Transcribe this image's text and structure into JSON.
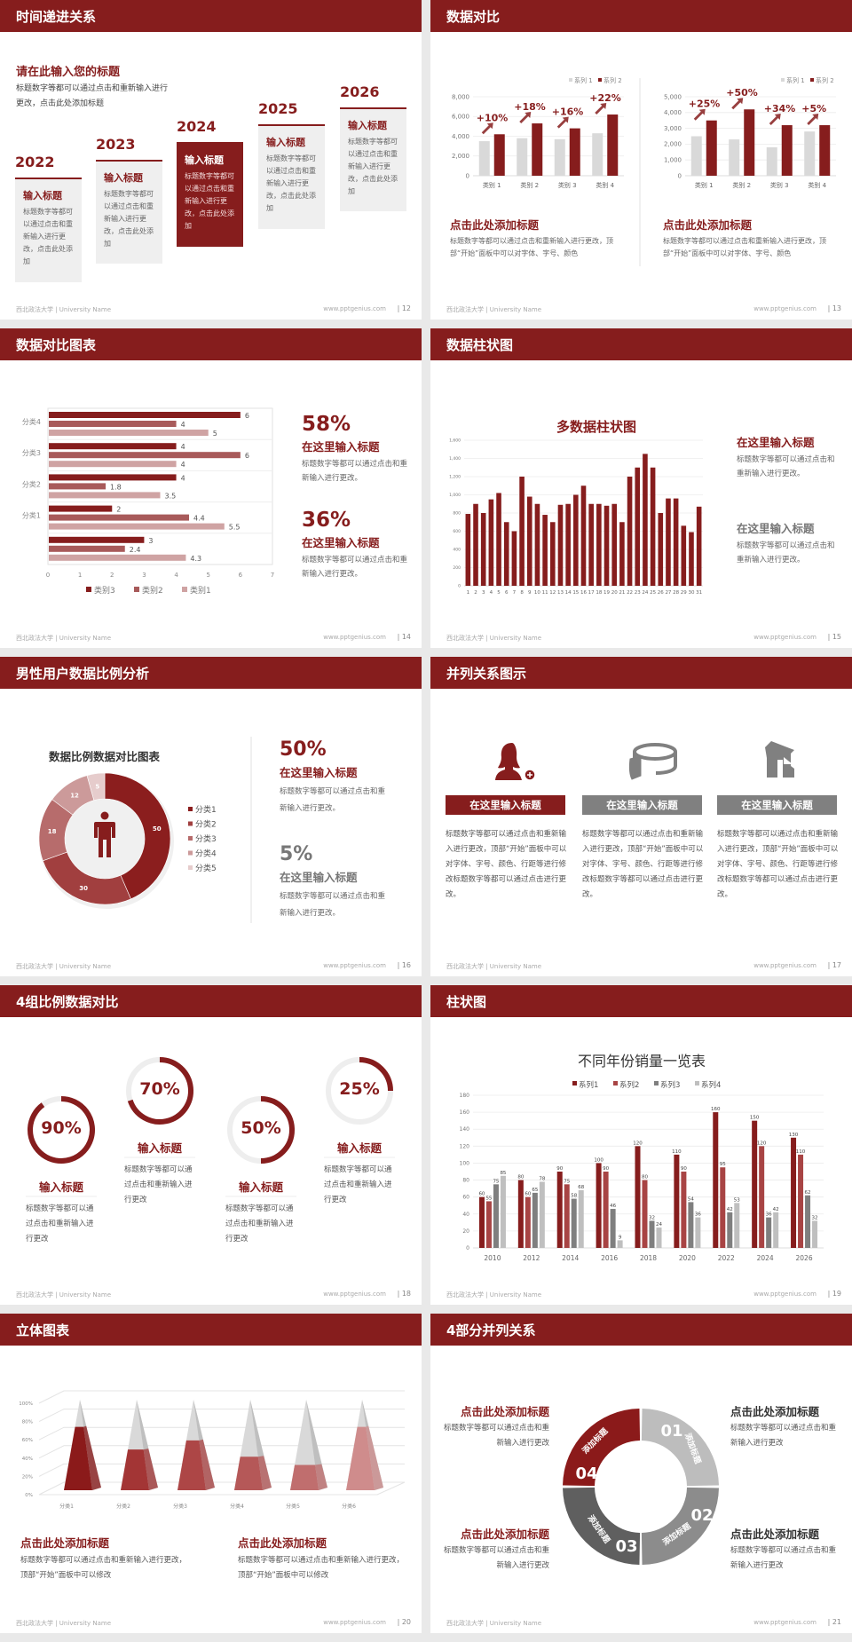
{
  "footer": {
    "left": "西北政法大学 | University Name",
    "url": "www.pptgenius.com"
  },
  "colors": {
    "primary": "#861d1d",
    "secondary": "#a84444",
    "gray": "#7f7f7f",
    "light_gray": "#bfbfbf",
    "background": "#e9e9e9"
  },
  "slides": [
    {
      "title": "时间递进关系",
      "page": "| 12",
      "heading": "请在此输入您的标题",
      "desc": "标题数字等都可以通过点击和重新输入进行更改，点击此处添加标题",
      "steps": [
        {
          "year": "2022",
          "title": "输入标题",
          "body": "标题数字等都可以通过点击和重新输入进行更改，点击此处添加"
        },
        {
          "year": "2023",
          "title": "输入标题",
          "body": "标题数字等都可以通过点击和重新输入进行更改，点击此处添加"
        },
        {
          "year": "2024",
          "title": "输入标题",
          "body": "标题数字等都可以通过点击和重新输入进行更改，点击此处添加"
        },
        {
          "year": "2025",
          "title": "输入标题",
          "body": "标题数字等都可以通过点击和重新输入进行更改，点击此处添加"
        },
        {
          "year": "2026",
          "title": "输入标题",
          "body": "标题数字等都可以通过点击和重新输入进行更改，点击此处添加"
        }
      ]
    },
    {
      "title": "数据对比",
      "page": "| 13",
      "texts": [
        {
          "title": "点击此处添加标题",
          "body": "标题数字等都可以通过点击和重新输入进行更改，顶部“开始”面板中可以对字体、字号、颜色"
        },
        {
          "title": "点击此处添加标题",
          "body": "标题数字等都可以通过点击和重新输入进行更改，顶部“开始”面板中可以对字体、字号、颜色"
        }
      ]
    },
    {
      "title": "数据对比图表",
      "page": "| 14",
      "stats": [
        {
          "value": "58%",
          "title": "在这里输入标题",
          "body": "标题数字等都可以通过点击和重新输入进行更改。"
        },
        {
          "value": "36%",
          "title": "在这里输入标题",
          "body": "标题数字等都可以通过点击和重新输入进行更改。"
        }
      ]
    },
    {
      "title": "数据柱状图",
      "page": "| 15",
      "texts": [
        {
          "title": "在这里输入标题",
          "body": "标题数字等都可以通过点击和重新输入进行更改。"
        },
        {
          "title": "在这里输入标题",
          "body": "标题数字等都可以通过点击和重新输入进行更改。"
        }
      ]
    },
    {
      "title": "男性用户数据比例分析",
      "page": "| 16",
      "center_icon": "male-person-icon",
      "stats": [
        {
          "value": "50%",
          "title": "在这里输入标题",
          "body": "标题数字等都可以通过点击和重新输入进行更改。"
        },
        {
          "value": "5%",
          "title": "在这里输入标题",
          "body": "标题数字等都可以通过点击和重新输入进行更改。"
        }
      ]
    },
    {
      "title": "并列关系图示",
      "page": "| 17",
      "items": [
        {
          "icon": "female-user-add-icon",
          "label": "在这里输入标题",
          "body": "标题数字等都可以通过点击和重新输入进行更改，顶部“开始”面板中可以对字体、字号、颜色、行距等进行修改标题数字等都可以通过点击进行更改。"
        },
        {
          "icon": "pie-chart-3d-icon",
          "label": "在这里输入标题",
          "body": "标题数字等都可以通过点击和重新输入进行更改，顶部“开始”面板中可以对字体、字号、颜色、行距等进行修改标题数字等都可以通过点击进行更改。"
        },
        {
          "icon": "store-building-icon",
          "label": "在这里输入标题",
          "body": "标题数字等都可以通过点击和重新输入进行更改，顶部“开始”面板中可以对字体、字号、颜色、行距等进行修改标题数字等都可以通过点击进行更改。"
        }
      ]
    },
    {
      "title": "4组比例数据对比",
      "page": "| 18",
      "items": [
        {
          "percent": 90,
          "label": "90%",
          "title": "输入标题",
          "body": "标题数字等都可以通过点击和重新输入进行更改"
        },
        {
          "percent": 70,
          "label": "70%",
          "title": "输入标题",
          "body": "标题数字等都可以通过点击和重新输入进行更改"
        },
        {
          "percent": 50,
          "label": "50%",
          "title": "输入标题",
          "body": "标题数字等都可以通过点击和重新输入进行更改"
        },
        {
          "percent": 25,
          "label": "25%",
          "title": "输入标题",
          "body": "标题数字等都可以通过点击和重新输入进行更改"
        }
      ]
    },
    {
      "title": "柱状图",
      "page": "| 19"
    },
    {
      "title": "立体图表",
      "page": "| 20",
      "texts": [
        {
          "title": "点击此处添加标题",
          "body": "标题数字等都可以通过点击和重新输入进行更改，顶部“开始”面板中可以修改"
        },
        {
          "title": "点击此处添加标题",
          "body": "标题数字等都可以通过点击和重新输入进行更改，顶部“开始”面板中可以修改"
        }
      ]
    },
    {
      "title": "4部分并列关系",
      "page": "| 21",
      "segments": [
        {
          "num": "01",
          "label": "添加标题",
          "color": "#bdbdbd"
        },
        {
          "num": "02",
          "label": "添加标题",
          "color": "#8c8c8c"
        },
        {
          "num": "03",
          "label": "添加标题",
          "color": "#5f5f5f"
        },
        {
          "num": "04",
          "label": "添加标题",
          "color": "#8b1a1a"
        }
      ],
      "texts": [
        {
          "title": "点击此处添加标题",
          "body": "标题数字等都可以通过点击和重新输入进行更改"
        },
        {
          "title": "点击此处添加标题",
          "body": "标题数字等都可以通过点击和重新输入进行更改"
        },
        {
          "title": "点击此处添加标题",
          "body": "标题数字等都可以通过点击和重新输入进行更改"
        },
        {
          "title": "点击此处添加标题",
          "body": "标题数字等都可以通过点击和重新输入进行更改"
        }
      ]
    }
  ],
  "chart_data": [
    {
      "type": "bar",
      "categories": [
        "类别 1",
        "类别 2",
        "类别 3",
        "类别 4"
      ],
      "series": [
        {
          "name": "系列 1",
          "values": [
            3500,
            3800,
            3700,
            4300
          ],
          "color": "#d9d9d9"
        },
        {
          "name": "系列 2",
          "values": [
            4200,
            5300,
            4800,
            6200
          ],
          "color": "#861d1d"
        }
      ],
      "annotations": [
        "+10%",
        "+18%",
        "+16%",
        "+22%"
      ],
      "ylim": [
        0,
        8000
      ],
      "ytick_labels": [
        "0",
        "2,000",
        "4,000",
        "6,000",
        "8,000"
      ],
      "grid": true,
      "legend": "top-right"
    },
    {
      "type": "bar",
      "categories": [
        "类别 1",
        "类别 2",
        "类别 3",
        "类别 4"
      ],
      "series": [
        {
          "name": "系列 1",
          "values": [
            2500,
            2300,
            1800,
            2800
          ],
          "color": "#d9d9d9"
        },
        {
          "name": "系列 2",
          "values": [
            3500,
            4200,
            3200,
            3200
          ],
          "color": "#861d1d"
        }
      ],
      "annotations": [
        "+25%",
        "+50%",
        "+34%",
        "+5%"
      ],
      "ylim": [
        0,
        5000
      ],
      "ytick_labels": [
        "0",
        "1,000",
        "2,000",
        "3,000",
        "4,000",
        "5,000"
      ],
      "grid": true,
      "legend": "top-right"
    },
    {
      "type": "bar",
      "orientation": "horizontal",
      "categories": [
        "分类4",
        "分类3",
        "分类2",
        "分类1",
        ""
      ],
      "series": [
        {
          "name": "类别3",
          "values": [
            6,
            4,
            4,
            2,
            3
          ],
          "color": "#861d1d"
        },
        {
          "name": "类别2",
          "values": [
            4,
            6,
            1.8,
            4.4,
            2.4
          ],
          "color": "#a85a5a"
        },
        {
          "name": "类别1",
          "values": [
            5,
            4,
            3.5,
            5.5,
            4.3
          ],
          "color": "#cfa3a3"
        }
      ],
      "xlim": [
        0,
        7
      ],
      "xtick_labels": [
        "0",
        "1",
        "2",
        "3",
        "4",
        "5",
        "6",
        "7"
      ],
      "grid": true,
      "legend": "bottom"
    },
    {
      "type": "bar",
      "title": "多数据柱状图",
      "categories": [
        "1",
        "2",
        "3",
        "4",
        "5",
        "6",
        "7",
        "8",
        "9",
        "10",
        "11",
        "12",
        "13",
        "14",
        "15",
        "16",
        "17",
        "18",
        "19",
        "20",
        "21",
        "22",
        "23",
        "24",
        "25",
        "26",
        "27",
        "28",
        "29",
        "30",
        "31"
      ],
      "values": [
        790,
        900,
        800,
        950,
        1020,
        700,
        600,
        1200,
        980,
        900,
        780,
        700,
        890,
        900,
        1000,
        1100,
        900,
        900,
        880,
        900,
        700,
        1200,
        1300,
        1450,
        1300,
        800,
        960,
        960,
        660,
        590,
        870
      ],
      "ylim": [
        0,
        1600
      ],
      "ytick_labels": [
        "0",
        "200",
        "400",
        "600",
        "800",
        "1,000",
        "1,200",
        "1,400",
        "1,600"
      ],
      "grid": true,
      "color": "#861d1d"
    },
    {
      "type": "pie",
      "donut": true,
      "title": "数据比例数据对比图表",
      "categories": [
        "分类1",
        "分类2",
        "分类3",
        "分类4",
        "分类5"
      ],
      "values": [
        50,
        30,
        18,
        12,
        5
      ],
      "colors": [
        "#8b1e1e",
        "#a13f3f",
        "#b76c6c",
        "#cc9a9a",
        "#e6cccc"
      ],
      "legend": "right"
    },
    {
      "type": "bar",
      "title": "不同年份销量一览表",
      "categories": [
        "2010",
        "2012",
        "2014",
        "2016",
        "2018",
        "2020",
        "2022",
        "2024",
        "2026"
      ],
      "series": [
        {
          "name": "系列1",
          "values": [
            60,
            80,
            90,
            100,
            120,
            110,
            160,
            150,
            130
          ],
          "color": "#861d1d"
        },
        {
          "name": "系列2",
          "values": [
            55,
            60,
            75,
            90,
            80,
            90,
            95,
            120,
            110
          ],
          "color": "#a84444"
        },
        {
          "name": "系列3",
          "values": [
            75,
            65,
            58,
            46,
            32,
            54,
            42,
            36,
            62
          ],
          "color": "#7f7f7f"
        },
        {
          "name": "系列4",
          "values": [
            85,
            78,
            68,
            9,
            24,
            36,
            53,
            42,
            32
          ],
          "color": "#bfbfbf"
        }
      ],
      "ylim": [
        0,
        180
      ],
      "ytick_labels": [
        "0",
        "20",
        "40",
        "60",
        "80",
        "100",
        "120",
        "140",
        "160",
        "180"
      ],
      "grid": true,
      "legend": "top"
    },
    {
      "type": "bar",
      "style": "3d-pyramid",
      "categories": [
        "分类1",
        "分类2",
        "分类3",
        "分类4",
        "分类5",
        "分类6"
      ],
      "values": [
        70,
        45,
        55,
        37,
        28,
        70
      ],
      "colors": [
        "#8b1a1a",
        "#a33535",
        "#ad4646",
        "#b55858",
        "#c06e6e",
        "#cf8c8c"
      ],
      "ylim": [
        0,
        100
      ],
      "ytick_labels": [
        "0%",
        "20%",
        "40%",
        "60%",
        "80%",
        "100%"
      ],
      "grid": true
    }
  ]
}
